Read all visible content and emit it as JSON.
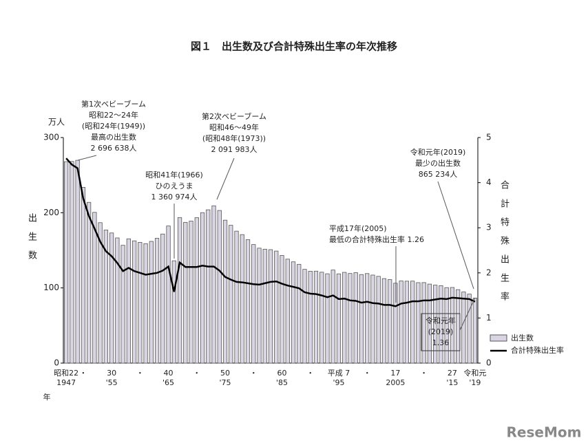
{
  "title": "図１　出生数及び合計特殊出生率の年次推移",
  "watermark": "ReseMom",
  "chart_data": {
    "type": "bar-line",
    "y_label_unit": "万人",
    "y_label": "出生数",
    "y2_label": "合計特殊出生率",
    "x_label": "年",
    "ylim": [
      0,
      300
    ],
    "yticks": [
      0,
      100,
      200,
      300
    ],
    "y2lim": [
      0,
      5
    ],
    "y2ticks": [
      0,
      1,
      2,
      3,
      4,
      5
    ],
    "categories": [
      [
        "昭和22",
        "1947"
      ],
      null,
      null,
      [
        "・"
      ],
      null,
      null,
      null,
      null,
      [
        "30",
        "'55"
      ],
      null,
      null,
      null,
      null,
      [
        "・"
      ],
      null,
      null,
      null,
      null,
      [
        "40",
        "'65"
      ],
      null,
      null,
      null,
      null,
      [
        "・"
      ],
      null,
      null,
      null,
      null,
      [
        "50",
        "'75"
      ],
      null,
      null,
      null,
      null,
      [
        "・"
      ],
      null,
      null,
      null,
      null,
      [
        "60",
        "'85"
      ],
      null,
      null,
      null,
      null,
      [
        "・"
      ],
      null,
      null,
      null,
      null,
      [
        "平成 7",
        "'95"
      ],
      null,
      null,
      null,
      null,
      [
        "・"
      ],
      null,
      null,
      null,
      null,
      [
        "17",
        "2005"
      ],
      null,
      null,
      null,
      null,
      [
        "・"
      ],
      null,
      null,
      null,
      null,
      [
        "27",
        "'15"
      ],
      null,
      null,
      null,
      [
        "令和元",
        "'19"
      ]
    ],
    "series": [
      {
        "name": "出生数",
        "color": "#d9d5e3",
        "values": [
          267.9,
          268.2,
          269.7,
          233.8,
          213.8,
          200.5,
          186.8,
          177.0,
          173.1,
          166.5,
          156.7,
          165.3,
          162.6,
          160.6,
          158.9,
          161.9,
          166.0,
          171.7,
          182.4,
          136.1,
          193.6,
          187.2,
          188.9,
          193.4,
          200.1,
          203.9,
          209.2,
          203.0,
          190.1,
          183.3,
          175.5,
          170.9,
          164.3,
          157.7,
          152.9,
          151.5,
          150.9,
          149.0,
          143.2,
          138.3,
          134.7,
          131.4,
          124.7,
          122.2,
          122.3,
          120.9,
          118.8,
          123.8,
          118.7,
          120.7,
          119.2,
          120.3,
          117.8,
          119.1,
          117.1,
          115.4,
          112.4,
          111.1,
          106.3,
          109.3,
          109.0,
          109.1,
          107.0,
          107.1,
          105.1,
          103.7,
          103.0,
          100.4,
          100.6,
          97.7,
          94.6,
          91.8,
          86.5
        ]
      },
      {
        "name": "合計特殊出生率",
        "color": "#000000",
        "axis": "y2",
        "values": [
          4.54,
          4.4,
          4.32,
          3.65,
          3.26,
          2.98,
          2.69,
          2.48,
          2.37,
          2.22,
          2.04,
          2.11,
          2.04,
          2.0,
          1.96,
          1.98,
          2.0,
          2.05,
          2.14,
          1.58,
          2.23,
          2.13,
          2.13,
          2.13,
          2.16,
          2.14,
          2.14,
          2.05,
          1.91,
          1.85,
          1.8,
          1.79,
          1.77,
          1.75,
          1.74,
          1.77,
          1.8,
          1.81,
          1.76,
          1.72,
          1.69,
          1.66,
          1.57,
          1.54,
          1.53,
          1.5,
          1.46,
          1.5,
          1.42,
          1.43,
          1.39,
          1.38,
          1.34,
          1.36,
          1.33,
          1.32,
          1.29,
          1.29,
          1.26,
          1.32,
          1.34,
          1.37,
          1.37,
          1.39,
          1.39,
          1.41,
          1.43,
          1.42,
          1.45,
          1.44,
          1.43,
          1.42,
          1.36
        ]
      }
    ],
    "annotations": [
      {
        "lines": [
          "第1次ベビーブーム",
          "昭和22～24年",
          "(昭和24年(1949))",
          "最高の出生数",
          "2 696 638人"
        ]
      },
      {
        "lines": [
          "昭和41年(1966)",
          "ひのえうま",
          "1 360 974人"
        ]
      },
      {
        "lines": [
          "第2次ベビーブーム",
          "昭和46～49年",
          "(昭和48年(1973))",
          "2 091 983人"
        ]
      },
      {
        "lines": [
          "令和元年(2019)",
          "最少の出生数",
          "865 234人"
        ]
      },
      {
        "lines": [
          "平成17年(2005)",
          "最低の合計特殊出生率 1.26"
        ]
      },
      {
        "lines": [
          "令和元年",
          "(2019)",
          "1.36"
        ]
      }
    ]
  }
}
